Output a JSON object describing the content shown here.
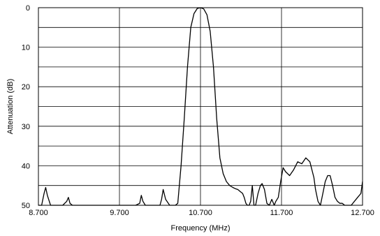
{
  "chart_data": {
    "type": "line",
    "title": "",
    "xlabel": "Frequency (MHz)",
    "ylabel": "Attenuation (dB)",
    "xlim": [
      8.7,
      12.7
    ],
    "ylim": [
      0,
      50
    ],
    "y_inverted": true,
    "grid": true,
    "x_tick_values": [
      8.7,
      9.7,
      10.7,
      11.7,
      12.7
    ],
    "x_tick_labels": [
      "8.700",
      "9.700",
      "10.700",
      "11.700",
      "12.700"
    ],
    "y_tick_values": [
      0,
      10,
      20,
      30,
      40,
      50
    ],
    "y_tick_labels": [
      "0",
      "10",
      "20",
      "30",
      "40",
      "50"
    ],
    "series": [
      {
        "color": "#000000",
        "x": [
          8.7,
          8.74,
          8.77,
          8.79,
          8.81,
          8.85,
          8.9,
          9.0,
          9.05,
          9.07,
          9.09,
          9.12,
          9.3,
          9.5,
          9.7,
          9.9,
          9.95,
          9.97,
          9.99,
          10.02,
          10.1,
          10.2,
          10.22,
          10.24,
          10.27,
          10.32,
          10.36,
          10.39,
          10.42,
          10.46,
          10.5,
          10.54,
          10.58,
          10.62,
          10.66,
          10.7,
          10.74,
          10.78,
          10.82,
          10.86,
          10.9,
          10.94,
          10.98,
          11.02,
          11.06,
          11.1,
          11.13,
          11.16,
          11.19,
          11.22,
          11.24,
          11.26,
          11.28,
          11.3,
          11.32,
          11.34,
          11.36,
          11.38,
          11.41,
          11.44,
          11.46,
          11.49,
          11.52,
          11.55,
          11.58,
          11.61,
          11.63,
          11.66,
          11.69,
          11.72,
          11.75,
          11.8,
          11.85,
          11.9,
          11.95,
          12.0,
          12.05,
          12.1,
          12.12,
          12.15,
          12.18,
          12.21,
          12.24,
          12.27,
          12.3,
          12.33,
          12.36,
          12.39,
          12.42,
          12.45,
          12.48,
          12.52,
          12.56,
          12.6,
          12.64,
          12.68,
          12.7
        ],
        "values": [
          50,
          50,
          47,
          45.5,
          47.5,
          50,
          50,
          50,
          49,
          48,
          49.5,
          50,
          50,
          50,
          50,
          50,
          49.5,
          47.5,
          49,
          50,
          50,
          50,
          48.5,
          46,
          48.5,
          50,
          50,
          50,
          49.5,
          40,
          28,
          15,
          5,
          1.5,
          0.2,
          0,
          0.3,
          1.8,
          6,
          15,
          28,
          38,
          42,
          44,
          45,
          45.5,
          45.8,
          46,
          46.5,
          47,
          48,
          49.5,
          50,
          50,
          49,
          45,
          50,
          50,
          47,
          45,
          44.5,
          46,
          49.5,
          50,
          48.5,
          50,
          49,
          48,
          44,
          40.5,
          41.5,
          42.5,
          41,
          39,
          39.5,
          38,
          39,
          43,
          46,
          49,
          50,
          47,
          44,
          42.5,
          42.5,
          45,
          48,
          49,
          49.5,
          49.5,
          50,
          50,
          50,
          49,
          48,
          47,
          44
        ]
      }
    ]
  }
}
